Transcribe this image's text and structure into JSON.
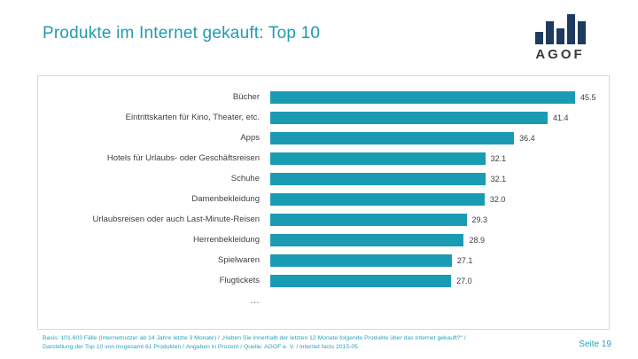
{
  "slide": {
    "title": "Produkte im Internet gekauft: Top 10",
    "logo_text": "AGOF",
    "page_label": "Seite 19",
    "footnote": "Basis: 101.603 Fälle (Internetnutzer ab 14 Jahre letzte 3 Monate) / „Haben Sie innerhalb der letzten 12 Monate folgende Produkte über das Internet gekauft?“ / Darstellung der Top 10 von insgesamt 61 Produkten / Angaben in Prozent / Quelle: AGOF e. V. / internet facts 2015-05"
  },
  "colors": {
    "accent_teal": "#1a9bb4",
    "title_teal": "#1f9bb4",
    "footnote_teal": "#2ba3b8",
    "logo_navy": "#1e3a5f",
    "label_text": "#404040",
    "panel_border": "#d8d8d8"
  },
  "chart_data": {
    "type": "bar",
    "orientation": "horizontal",
    "title": "Produkte im Internet gekauft: Top 10",
    "xlabel": "",
    "ylabel": "",
    "xlim": [
      0,
      50
    ],
    "grid": false,
    "legend": "none",
    "unit": "Prozent",
    "bar_color": "#1a9bb4",
    "categories": [
      "Bücher",
      "Eintrittskarten für Kino, Theater, etc.",
      "Apps",
      "Hotels für Urlaubs- oder Geschäftsreisen",
      "Schuhe",
      "Damenbekleidung",
      "Urlaubsreisen oder auch Last-Minute-Reisen",
      "Herrenbekleidung",
      "Spielwaren",
      "Flugtickets"
    ],
    "values": [
      45.5,
      41.4,
      36.4,
      32.1,
      32.1,
      32.0,
      29.3,
      28.9,
      27.1,
      27.0
    ],
    "more_label": "…"
  }
}
